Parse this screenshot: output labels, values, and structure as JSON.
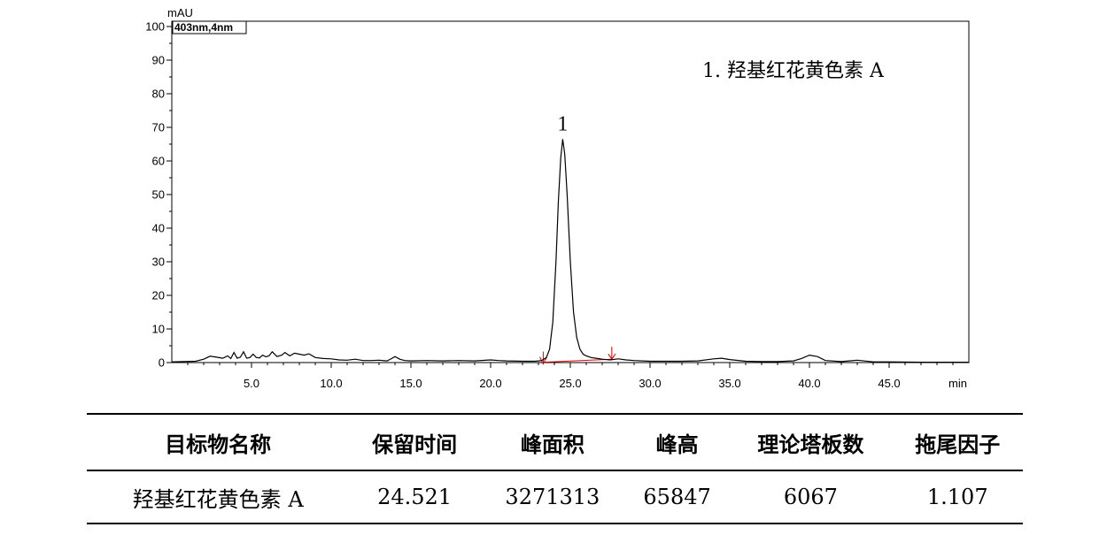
{
  "chart_data": {
    "type": "line",
    "title": "",
    "detector": "403nm,4nm",
    "ylabel": "mAU",
    "xlabel": "min",
    "xlim": [
      0,
      50
    ],
    "ylim": [
      0,
      100
    ],
    "yticks": [
      0,
      10,
      20,
      30,
      40,
      50,
      60,
      70,
      80,
      90,
      100
    ],
    "xticks": [
      "5.0",
      "10.0",
      "15.0",
      "20.0",
      "25.0",
      "30.0",
      "35.0",
      "40.0",
      "45.0"
    ],
    "grid": false,
    "legend": "1.   羟基红花黄色素 A",
    "legend_position": "top-right",
    "peaks": [
      {
        "label": "1",
        "rt": 24.52,
        "height": 66.5
      }
    ],
    "baseline_markers": {
      "start": 23.3,
      "end": 27.6,
      "color": "#e00000"
    },
    "series": [
      {
        "x": [
          0,
          1.5,
          2,
          2.4,
          2.8,
          3.2,
          3.5,
          3.7,
          3.9,
          4.1,
          4.3,
          4.5,
          4.7,
          4.9,
          5.1,
          5.3,
          5.5,
          5.7,
          5.9,
          6.1,
          6.3,
          6.6,
          6.9,
          7.1,
          7.4,
          7.7,
          8.0,
          8.3,
          8.6,
          9.0,
          9.5,
          10.0,
          10.5,
          11.0,
          11.5,
          12.0,
          12.5,
          13.0,
          13.5,
          13.8,
          14.0,
          14.3,
          14.6,
          15.0,
          16.0,
          17.0,
          18.0,
          19.0,
          20.0,
          20.5,
          21.0,
          22.0,
          22.8,
          23.2,
          23.5,
          23.7,
          23.9,
          24.1,
          24.25,
          24.4,
          24.52,
          24.65,
          24.8,
          25.0,
          25.2,
          25.4,
          25.6,
          25.8,
          26.0,
          26.3,
          26.7,
          27.0,
          27.5,
          28.0,
          28.5,
          29.0,
          30.0,
          31.0,
          32.0,
          33.0,
          34.0,
          34.5,
          35.0,
          36.0,
          37.0,
          38.0,
          39.0,
          39.5,
          40.0,
          40.5,
          41.0,
          42.0,
          42.5,
          43.0,
          44.0,
          45.0,
          47.0,
          50.0
        ],
        "y": [
          0.2,
          0.4,
          1.0,
          1.9,
          1.6,
          1.3,
          2.0,
          1.2,
          3.0,
          1.3,
          1.6,
          3.2,
          1.3,
          1.5,
          2.5,
          1.5,
          1.4,
          2.2,
          1.7,
          2.0,
          3.2,
          1.8,
          2.2,
          3.0,
          2.0,
          2.8,
          2.5,
          2.2,
          2.6,
          1.5,
          1.2,
          1.1,
          0.8,
          0.7,
          1.0,
          0.6,
          0.6,
          0.7,
          0.5,
          1.2,
          1.8,
          1.0,
          0.6,
          0.5,
          0.6,
          0.5,
          0.6,
          0.5,
          0.8,
          0.6,
          0.5,
          0.4,
          0.4,
          0.6,
          1.5,
          4.0,
          12.0,
          30.0,
          48.0,
          61.0,
          66.5,
          62.0,
          50.0,
          30.0,
          15.0,
          7.5,
          4.0,
          2.5,
          2.0,
          1.5,
          1.2,
          1.0,
          0.8,
          1.1,
          0.8,
          0.6,
          0.4,
          0.4,
          0.4,
          0.5,
          1.1,
          1.3,
          0.9,
          0.4,
          0.3,
          0.3,
          0.5,
          1.2,
          2.2,
          1.8,
          0.6,
          0.3,
          0.5,
          0.7,
          0.2,
          0.2,
          0.1,
          0.1
        ]
      }
    ]
  },
  "table": {
    "headers": [
      "目标物名称",
      "保留时间",
      "峰面积",
      "峰高",
      "理论塔板数",
      "拖尾因子"
    ],
    "rows": [
      [
        "羟基红花黄色素 A",
        "24.521",
        "3271313",
        "65847",
        "6067",
        "1.107"
      ]
    ]
  }
}
